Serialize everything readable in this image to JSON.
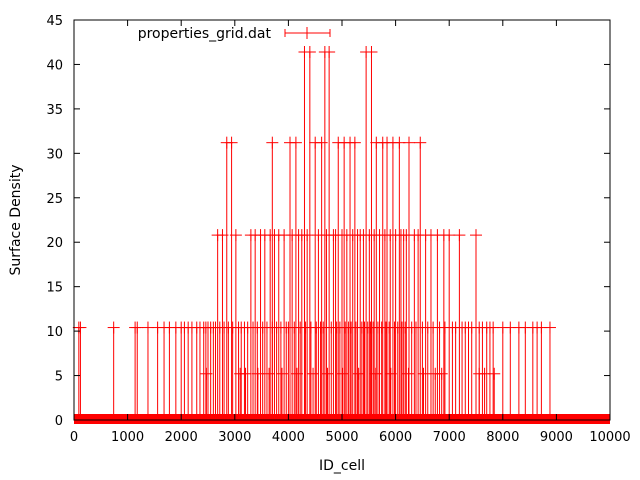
{
  "chart_data": {
    "type": "line",
    "title": "",
    "xlabel": "ID_cell",
    "ylabel": "Surface Density",
    "xlim": [
      0,
      10000
    ],
    "ylim": [
      0,
      45
    ],
    "grid": false,
    "legend_position": "top-left",
    "x_ticks": [
      0,
      1000,
      2000,
      3000,
      4000,
      5000,
      6000,
      7000,
      8000,
      9000,
      10000
    ],
    "y_ticks": [
      0,
      5,
      10,
      15,
      20,
      25,
      30,
      35,
      40,
      45
    ],
    "x_tick_labels": [
      "0",
      "1000",
      "2000",
      "3000",
      "4000",
      "5000",
      "6000",
      "7000",
      "8000",
      "9000",
      "10000"
    ],
    "y_tick_labels": [
      "0",
      "5",
      "10",
      "15",
      "20",
      "25",
      "30",
      "35",
      "40",
      "45"
    ],
    "series": [
      {
        "name": "properties_grid.dat",
        "color": "#ff0000",
        "style": "impulses-with-cross-markers",
        "baseline": 0,
        "spikes": {
          "41.4": [
            4300,
            4400,
            4680,
            4760,
            5450,
            5550
          ],
          "31.2": [
            2850,
            2940,
            3700,
            4030,
            4140,
            4500,
            4620,
            4930,
            5040,
            5150,
            5240,
            5640,
            5760,
            5840,
            5950,
            6070,
            6250,
            6460
          ],
          "20.8": [
            2680,
            2770,
            3020,
            3300,
            3380,
            3480,
            3560,
            3660,
            3740,
            3820,
            3920,
            4070,
            4190,
            4250,
            4350,
            4560,
            4710,
            4840,
            4880,
            5000,
            5090,
            5200,
            5290,
            5340,
            5400,
            5510,
            5600,
            5700,
            5800,
            5900,
            6000,
            6100,
            6150,
            6200,
            6350,
            6420,
            6560,
            6660,
            6780,
            6900,
            7000,
            7190,
            7500
          ],
          "10.4": [
            90,
            120,
            740,
            1140,
            1180,
            1380,
            1560,
            1680,
            1780,
            1900,
            2000,
            2060,
            2130,
            2200,
            2290,
            2350,
            2420,
            2460,
            2500,
            2550,
            2600,
            2640,
            2720,
            2800,
            2880,
            2960,
            3070,
            3120,
            3180,
            3240,
            3340,
            3420,
            3520,
            3600,
            3700,
            3780,
            3860,
            3960,
            4000,
            4110,
            4220,
            4320,
            4420,
            4520,
            4600,
            4650,
            4800,
            4900,
            4960,
            5060,
            5120,
            5170,
            5260,
            5370,
            5420,
            5480,
            5530,
            5580,
            5670,
            5740,
            5820,
            5880,
            5980,
            6040,
            6120,
            6180,
            6300,
            6380,
            6500,
            6600,
            6700,
            6820,
            6920,
            7060,
            7120,
            7240,
            7300,
            7360,
            7420,
            7560,
            7620,
            7700,
            7760,
            7820,
            8000,
            8140,
            8300,
            8420,
            8560,
            8640,
            8720,
            8880
          ],
          "5.2": [
            2470,
            3100,
            3200,
            3430,
            3640,
            3880,
            4160,
            4460,
            4730,
            5010,
            5310,
            5630,
            5910,
            6240,
            6520,
            6740,
            6860,
            7560,
            7660,
            7840
          ]
        }
      }
    ]
  }
}
